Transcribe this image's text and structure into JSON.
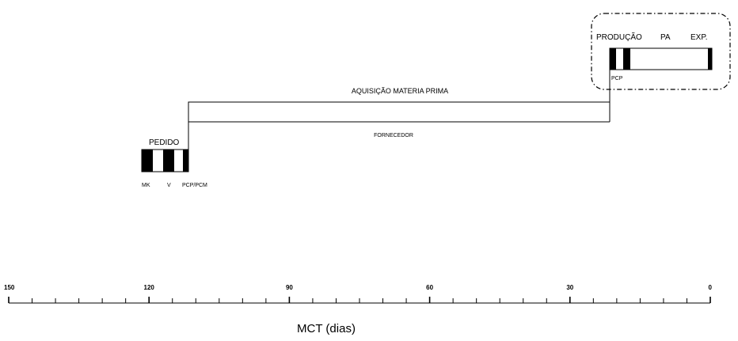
{
  "labels": {
    "pedido": "PEDIDO",
    "mk": "MK",
    "v": "V",
    "pcp_pcm": "PCP/PCM",
    "aquisicao": "AQUISIÇÃO MATERIA PRIMA",
    "fornecedor": "FORNECEDOR",
    "producao": "PRODUÇÃO",
    "pa": "PA",
    "exp": "EXP.",
    "pcp": "PCP"
  },
  "axis": {
    "title": "MCT (dias)",
    "ticks": [
      "150",
      "120",
      "90",
      "60",
      "30",
      "0"
    ]
  }
}
